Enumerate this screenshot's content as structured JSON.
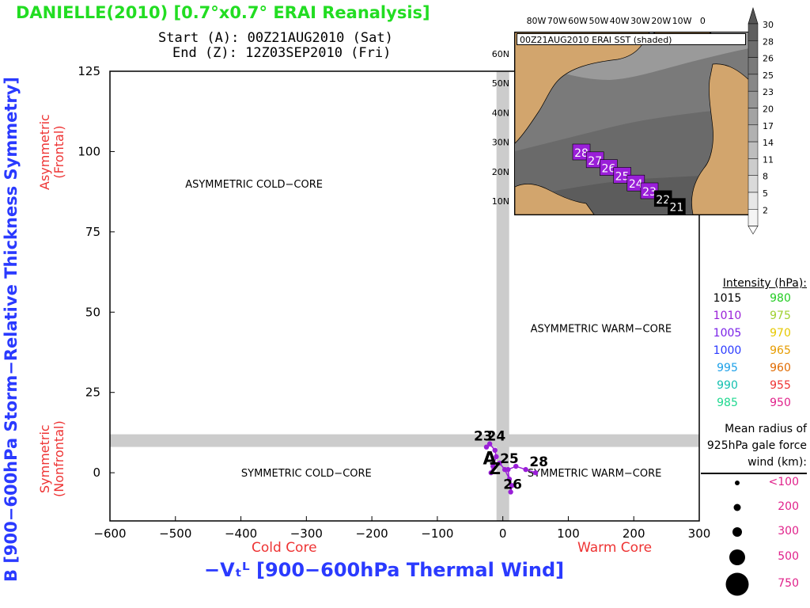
{
  "title": "DANIELLE(2010) [0.7°x0.7° ERAI Reanalysis]",
  "start_line": "Start (A): 00Z21AUG2010 (Sat)",
  "end_line": "End (Z): 12Z03SEP2010 (Fri)",
  "ylabel": "B [900−600hPa Storm−Relative Thickness Symmetry]",
  "ylabel_upper": [
    "Asymmetric",
    "(Frontal)"
  ],
  "ylabel_lower": [
    "Symmetric",
    "(Nonfrontal)"
  ],
  "xlabel": "−Vₜᴸ [900−600hPa Thermal Wind]",
  "xlabel_left": "Cold Core",
  "xlabel_right": "Warm Core",
  "colors": {
    "title": "#22dd22",
    "axis_label": "#2a3aff",
    "side_label": "#ee3333",
    "track": "#9a1fd8",
    "band": "#cccccc"
  },
  "chart_data": {
    "type": "scatter",
    "xlim": [
      -600,
      300
    ],
    "ylim": [
      -15,
      125
    ],
    "xticks": [
      -600,
      -500,
      -400,
      -300,
      -200,
      -100,
      0,
      100,
      200,
      300
    ],
    "yticks": [
      0,
      25,
      50,
      75,
      100,
      125
    ],
    "tick_labels_x": [
      "−600",
      "−500",
      "−400",
      "−300",
      "−200",
      "−100",
      "0",
      "100",
      "200",
      "300"
    ],
    "tick_labels_y": [
      "0",
      "25",
      "50",
      "75",
      "100",
      "125"
    ],
    "reference_lines": {
      "x": 0,
      "y": 10
    },
    "regions": [
      {
        "label": "ASYMMETRIC COLD−CORE",
        "x": -380,
        "y": 90
      },
      {
        "label": "ASYMMETRIC WARM−CORE",
        "x": 150,
        "y": 45
      },
      {
        "label": "SYMMETRIC COLD−CORE",
        "x": -300,
        "y": 0
      },
      {
        "label": "SYMMETRIC WARM−CORE",
        "x": 140,
        "y": 0
      }
    ],
    "track": [
      {
        "x": -25,
        "y": 8
      },
      {
        "x": -20,
        "y": 9
      },
      {
        "x": -12,
        "y": 7
      },
      {
        "x": -10,
        "y": 5
      },
      {
        "x": -15,
        "y": 2
      },
      {
        "x": -18,
        "y": 0
      },
      {
        "x": -5,
        "y": 3
      },
      {
        "x": 3,
        "y": 1
      },
      {
        "x": 10,
        "y": -2
      },
      {
        "x": 14,
        "y": -4
      },
      {
        "x": 12,
        "y": -6
      },
      {
        "x": 8,
        "y": 1
      },
      {
        "x": 20,
        "y": 2
      },
      {
        "x": 35,
        "y": 1
      },
      {
        "x": 50,
        "y": 0
      }
    ],
    "day_labels": [
      {
        "text": "23",
        "x": -30,
        "y": 10
      },
      {
        "text": "24",
        "x": -10,
        "y": 10
      },
      {
        "text": "25",
        "x": 10,
        "y": 3
      },
      {
        "text": "26",
        "x": 15,
        "y": -5
      },
      {
        "text": "28",
        "x": 55,
        "y": 2
      }
    ],
    "marker_start": "A",
    "marker_end": "Z"
  },
  "legend": {
    "title": "Intensity (hPa):",
    "rows": [
      {
        "left": "1015",
        "left_color": "#000000",
        "right": "980",
        "right_color": "#22cc22"
      },
      {
        "left": "1010",
        "left_color": "#9a1fd8",
        "right": "975",
        "right_color": "#a0d030"
      },
      {
        "left": "1005",
        "left_color": "#7a22e8",
        "right": "970",
        "right_color": "#e6c800"
      },
      {
        "left": "1000",
        "left_color": "#2a3aff",
        "right": "965",
        "right_color": "#e69b00"
      },
      {
        "left": "995",
        "left_color": "#1ca0e8",
        "right": "960",
        "right_color": "#e06a00"
      },
      {
        "left": "990",
        "left_color": "#14c0b0",
        "right": "955",
        "right_color": "#ee3333"
      },
      {
        "left": "985",
        "left_color": "#20d890",
        "right": "950",
        "right_color": "#e0218a"
      }
    ],
    "radius_title": "Mean radius of 925hPa gale force wind (km):",
    "radius_labels": [
      "<100",
      "200",
      "300",
      "500",
      "750"
    ]
  },
  "inset": {
    "title": "00Z21AUG2010 ERAI SST (shaded)",
    "lon_labels": [
      "80W",
      "70W",
      "60W",
      "50W",
      "40W",
      "30W",
      "20W",
      "10W",
      "0"
    ],
    "lat_labels": [
      "60N",
      "50N",
      "40N",
      "30N",
      "20N",
      "10N"
    ],
    "colorbar": [
      "30",
      "28",
      "26",
      "25",
      "23",
      "20",
      "17",
      "14",
      "11",
      "8",
      "5",
      "2"
    ],
    "track_days": [
      "28",
      "27",
      "26",
      "25",
      "24",
      "23",
      "22",
      "21"
    ]
  }
}
